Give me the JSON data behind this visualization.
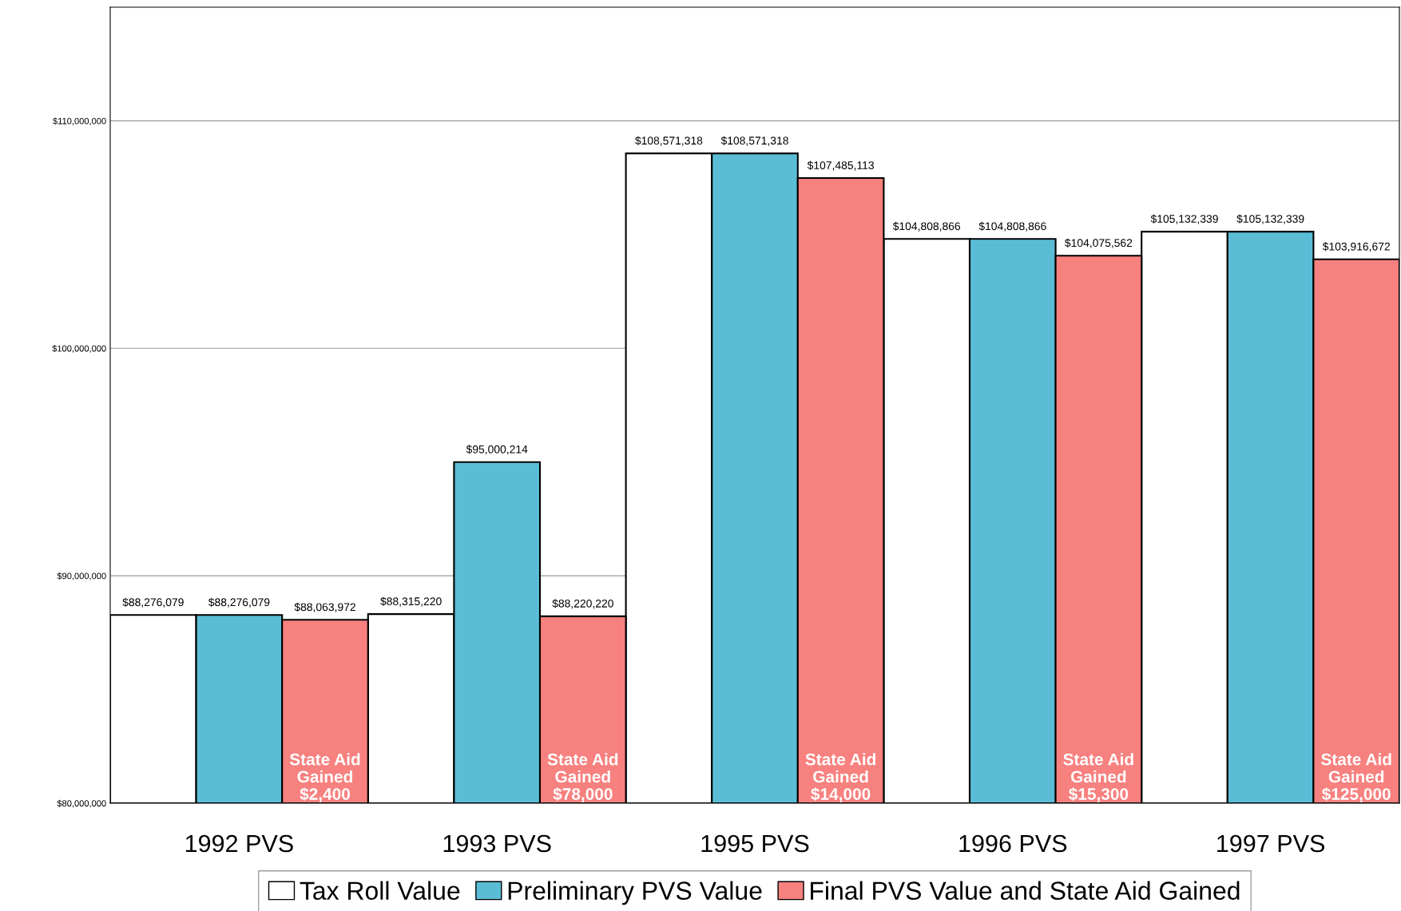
{
  "chart_data": {
    "type": "bar",
    "categories": [
      "1992 PVS",
      "1993 PVS",
      "1995 PVS",
      "1996 PVS",
      "1997 PVS"
    ],
    "series": [
      {
        "name": "Tax Roll Value",
        "color": "#ffffff",
        "values": [
          88276079,
          88315220,
          108571318,
          104808866,
          105132339
        ]
      },
      {
        "name": "Preliminary PVS Value",
        "color": "#5bbdd5",
        "values": [
          88276079,
          95000214,
          108571318,
          104808866,
          105132339
        ]
      },
      {
        "name": "Final PVS Value and State Aid Gained",
        "color": "#f7817f",
        "values": [
          88063972,
          88220220,
          107485113,
          104075562,
          103916672
        ]
      }
    ],
    "ylim": [
      80000000,
      115000000
    ],
    "yticks": [
      {
        "value": 80000000,
        "label": "$80,000,000"
      },
      {
        "value": 90000000,
        "label": "$90,000,000"
      },
      {
        "value": 100000000,
        "label": "$100,000,000"
      },
      {
        "value": 110000000,
        "label": "$110,000,000"
      }
    ],
    "value_labels": [
      [
        "$88,276,079",
        "$88,315,220",
        "$108,571,318",
        "$104,808,866",
        "$105,132,339"
      ],
      [
        "$88,276,079",
        "$95,000,214",
        "$108,571,318",
        "$104,808,866",
        "$105,132,339"
      ],
      [
        "$88,063,972",
        "$88,220,220",
        "$107,485,113",
        "$104,075,562",
        "$103,916,672"
      ]
    ],
    "annotations": [
      "State Aid\nGained\n$2,400",
      "State Aid\nGained\n$78,000",
      "State Aid\nGained\n$14,000",
      "State Aid\nGained\n$15,300",
      "State Aid\nGained\n$125,000"
    ],
    "grid": "y",
    "legend": "bottom"
  }
}
